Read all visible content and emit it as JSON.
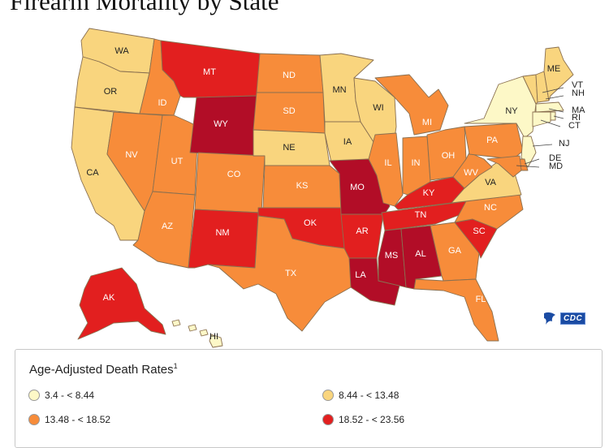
{
  "title": "Firearm Mortality by State",
  "colors": {
    "bin1": "#fdf8c7",
    "bin2": "#f9d57e",
    "bin3": "#f78c3a",
    "bin4": "#e21f1f",
    "bin5": "#b20d27",
    "border": "#8a7050"
  },
  "states": [
    {
      "abbr": "WA",
      "bin": "bin2"
    },
    {
      "abbr": "OR",
      "bin": "bin2"
    },
    {
      "abbr": "CA",
      "bin": "bin2"
    },
    {
      "abbr": "ID",
      "bin": "bin3"
    },
    {
      "abbr": "NV",
      "bin": "bin3"
    },
    {
      "abbr": "UT",
      "bin": "bin3"
    },
    {
      "abbr": "AZ",
      "bin": "bin3"
    },
    {
      "abbr": "MT",
      "bin": "bin4"
    },
    {
      "abbr": "WY",
      "bin": "bin5"
    },
    {
      "abbr": "CO",
      "bin": "bin3"
    },
    {
      "abbr": "NM",
      "bin": "bin4"
    },
    {
      "abbr": "ND",
      "bin": "bin3"
    },
    {
      "abbr": "SD",
      "bin": "bin3"
    },
    {
      "abbr": "NE",
      "bin": "bin2"
    },
    {
      "abbr": "KS",
      "bin": "bin3"
    },
    {
      "abbr": "OK",
      "bin": "bin4"
    },
    {
      "abbr": "TX",
      "bin": "bin3"
    },
    {
      "abbr": "MN",
      "bin": "bin2"
    },
    {
      "abbr": "IA",
      "bin": "bin2"
    },
    {
      "abbr": "MO",
      "bin": "bin5"
    },
    {
      "abbr": "AR",
      "bin": "bin4"
    },
    {
      "abbr": "LA",
      "bin": "bin5"
    },
    {
      "abbr": "WI",
      "bin": "bin2"
    },
    {
      "abbr": "IL",
      "bin": "bin3"
    },
    {
      "abbr": "MI",
      "bin": "bin3"
    },
    {
      "abbr": "IN",
      "bin": "bin3"
    },
    {
      "abbr": "OH",
      "bin": "bin3"
    },
    {
      "abbr": "KY",
      "bin": "bin4"
    },
    {
      "abbr": "TN",
      "bin": "bin4"
    },
    {
      "abbr": "MS",
      "bin": "bin5"
    },
    {
      "abbr": "AL",
      "bin": "bin5"
    },
    {
      "abbr": "GA",
      "bin": "bin3"
    },
    {
      "abbr": "FL",
      "bin": "bin3"
    },
    {
      "abbr": "SC",
      "bin": "bin4"
    },
    {
      "abbr": "NC",
      "bin": "bin3"
    },
    {
      "abbr": "VA",
      "bin": "bin2"
    },
    {
      "abbr": "WV",
      "bin": "bin3"
    },
    {
      "abbr": "PA",
      "bin": "bin3"
    },
    {
      "abbr": "NY",
      "bin": "bin1"
    },
    {
      "abbr": "VT",
      "bin": "bin2"
    },
    {
      "abbr": "NH",
      "bin": "bin2"
    },
    {
      "abbr": "ME",
      "bin": "bin2"
    },
    {
      "abbr": "MA",
      "bin": "bin1"
    },
    {
      "abbr": "RI",
      "bin": "bin1"
    },
    {
      "abbr": "CT",
      "bin": "bin1"
    },
    {
      "abbr": "NJ",
      "bin": "bin1"
    },
    {
      "abbr": "DE",
      "bin": "bin3"
    },
    {
      "abbr": "MD",
      "bin": "bin3"
    },
    {
      "abbr": "AK",
      "bin": "bin4"
    },
    {
      "abbr": "HI",
      "bin": "bin1"
    }
  ],
  "logo": {
    "text": "CDC"
  },
  "legend": {
    "title": "Age-Adjusted Death Rates",
    "footnote": "1",
    "items": [
      {
        "label": "3.4 - < 8.44",
        "bin": "bin1"
      },
      {
        "label": "8.44 - < 13.48",
        "bin": "bin2"
      },
      {
        "label": "13.48 - < 18.52",
        "bin": "bin3"
      },
      {
        "label": "18.52 - < 23.56",
        "bin": "bin4"
      }
    ]
  }
}
